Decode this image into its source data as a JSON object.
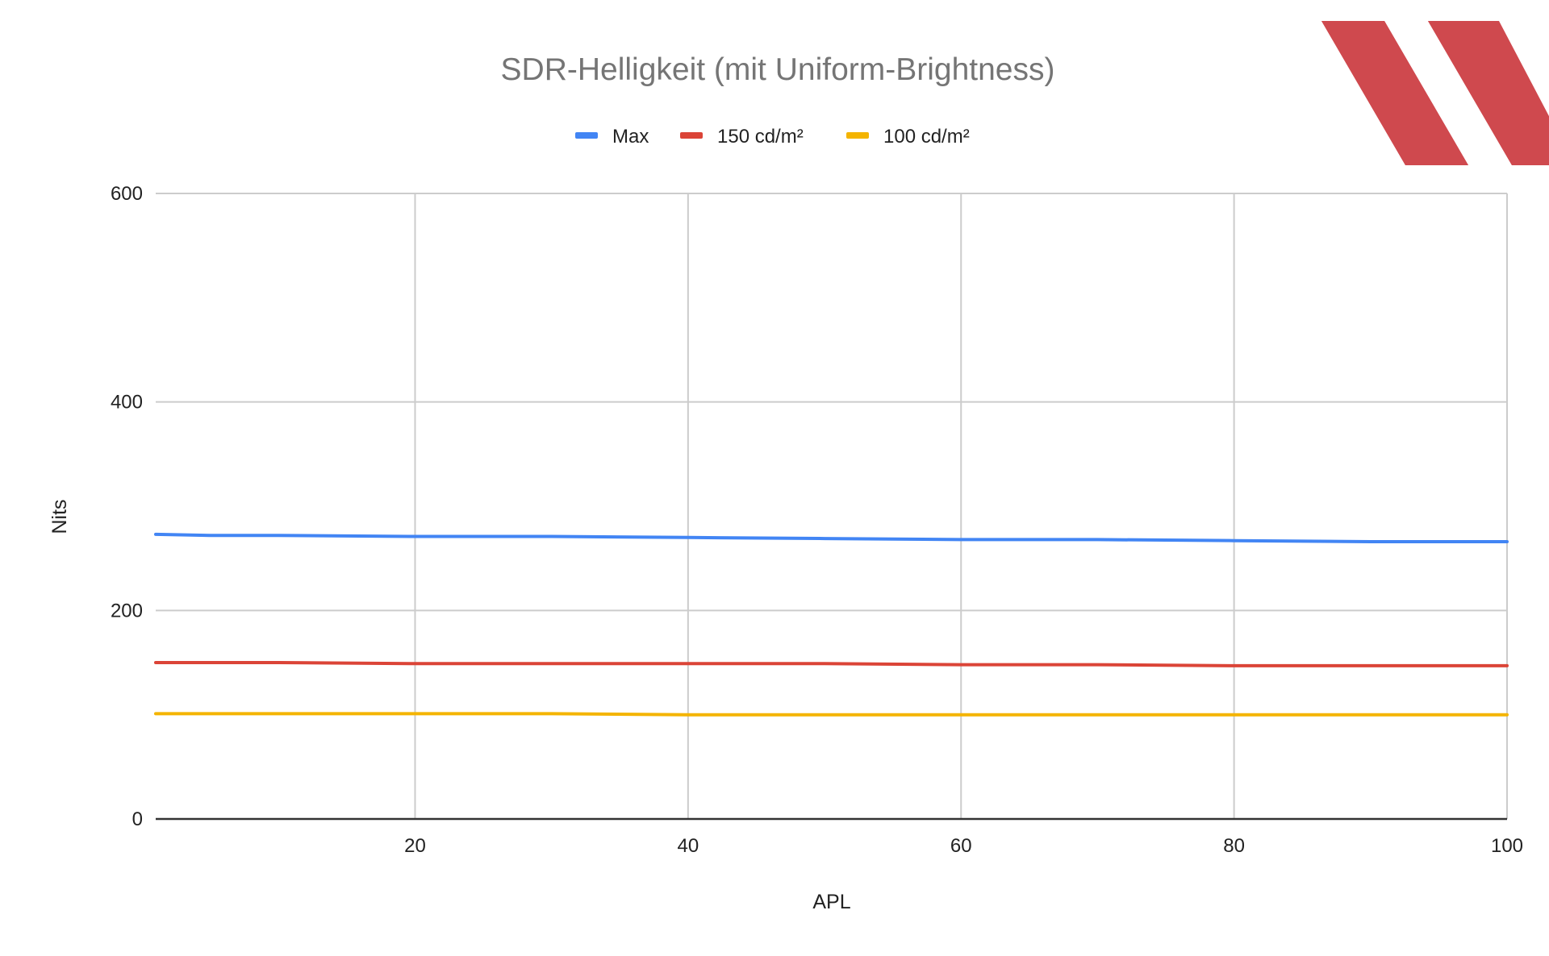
{
  "chart_data": {
    "type": "line",
    "title": "SDR-Helligkeit (mit Uniform-Brightness)",
    "xlabel": "APL",
    "ylabel": "Nits",
    "xlim": [
      1,
      100
    ],
    "ylim": [
      0,
      600
    ],
    "x_ticks": [
      20,
      40,
      60,
      80,
      100
    ],
    "y_ticks": [
      0,
      200,
      400,
      600
    ],
    "grid": true,
    "legend_position": "top",
    "x": [
      1,
      5,
      10,
      20,
      30,
      40,
      50,
      60,
      70,
      80,
      90,
      100
    ],
    "series": [
      {
        "name": "Max",
        "color": "#4285f4",
        "values": [
          273,
          272,
          272,
          271,
          271,
          270,
          269,
          268,
          268,
          267,
          266,
          266
        ]
      },
      {
        "name": "150 cd/m²",
        "color": "#db4437",
        "values": [
          150,
          150,
          150,
          149,
          149,
          149,
          149,
          148,
          148,
          147,
          147,
          147
        ]
      },
      {
        "name": "100 cd/m²",
        "color": "#f4b400",
        "values": [
          101,
          101,
          101,
          101,
          101,
          100,
          100,
          100,
          100,
          100,
          100,
          100
        ]
      }
    ]
  },
  "logo": {
    "name": "xx-logo",
    "color": "#cc3a40"
  }
}
